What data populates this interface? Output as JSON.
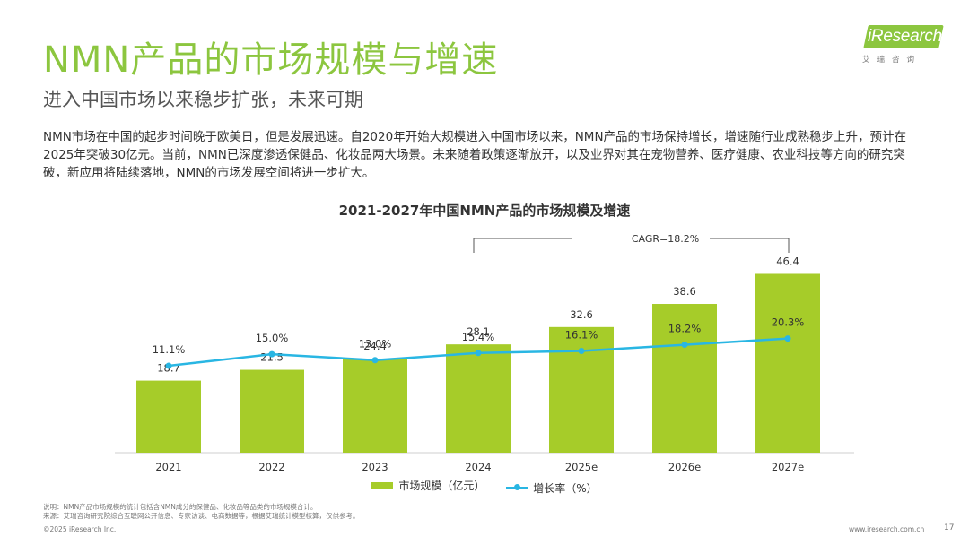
{
  "header": {
    "title": "NMN产品的市场规模与增速",
    "subtitle": "进入中国市场以来稳步扩张，未来可期"
  },
  "logo": {
    "word": "iResearch",
    "sub": "艾瑞咨询",
    "color": "#8cc63f"
  },
  "body_text": "NMN市场在中国的起步时间晚于欧美日，但是发展迅速。自2020年开始大规模进入中国市场以来，NMN产品的市场保持增长，增速随行业成熟稳步上升，预计在2025年突破30亿元。当前，NMN已深度渗透保健品、化妆品两大场景。未来随着政策逐渐放开，以及业界对其在宠物营养、医疗健康、农业科技等方向的研究突破，新应用将陆续落地，NMN的市场发展空间将进一步扩大。",
  "chart_data": {
    "type": "bar",
    "title": "2021-2027年中国NMN产品的市场规模及增速",
    "categories": [
      "2021",
      "2022",
      "2023",
      "2024",
      "2025e",
      "2026e",
      "2027e"
    ],
    "series": [
      {
        "name": "市场规模（亿元）",
        "type": "bar",
        "values": [
          18.7,
          21.5,
          24.4,
          28.1,
          32.6,
          38.6,
          46.4
        ],
        "labels": [
          "18.7",
          "21.5",
          "24.4",
          "28.1",
          "32.6",
          "38.6",
          "46.4"
        ],
        "color": "#a6cc29"
      },
      {
        "name": "增长率（%）",
        "type": "line",
        "values": [
          11.1,
          15.0,
          13.0,
          15.4,
          16.1,
          18.2,
          20.3
        ],
        "labels": [
          "11.1%",
          "15.0%",
          "13.0%",
          "15.4%",
          "16.1%",
          "18.2%",
          "20.3%"
        ],
        "color": "#29b6e3"
      }
    ],
    "annotation": "CAGR=18.2%",
    "legend_position": "bottom"
  },
  "footer": {
    "note": "说明：NMN产品市场规模的统计包括含NMN成分的保健品、化妆品等品类的市场规模合计。",
    "source": "来源：艾瑞咨询研究院综合互联网公开信息、专家访谈、电商数据等，根据艾瑞统计模型核算，仅供参考。",
    "copyright": "©2025 iResearch Inc.",
    "website": "www.iresearch.com.cn",
    "page": "17"
  }
}
